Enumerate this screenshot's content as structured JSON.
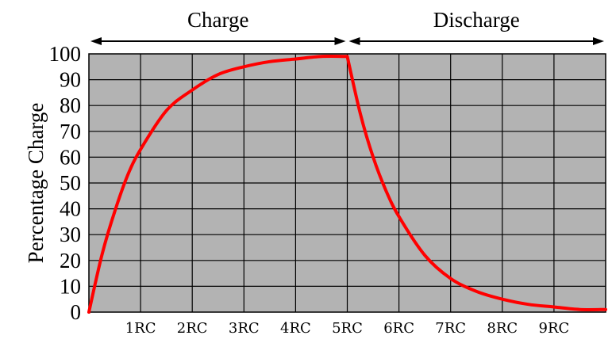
{
  "chart_data": {
    "type": "line",
    "title": "",
    "xlabel": "",
    "ylabel": "Percentage Charge",
    "xlim": [
      0,
      10
    ],
    "ylim": [
      0,
      100
    ],
    "x_ticks": [
      1,
      2,
      3,
      4,
      5,
      6,
      7,
      8,
      9
    ],
    "x_tick_labels": [
      "1RC",
      "2RC",
      "3RC",
      "4RC",
      "5RC",
      "6RC",
      "7RC",
      "8RC",
      "9RC"
    ],
    "y_ticks": [
      0,
      10,
      20,
      30,
      40,
      50,
      60,
      70,
      80,
      90,
      100
    ],
    "y_tick_labels": [
      "0",
      "10",
      "20",
      "30",
      "40",
      "50",
      "60",
      "70",
      "80",
      "90",
      "100"
    ],
    "grid": true,
    "phases": [
      {
        "label": "Charge",
        "x_start": 0,
        "x_end": 5
      },
      {
        "label": "Discharge",
        "x_start": 5,
        "x_end": 10
      }
    ],
    "series": [
      {
        "color": "#ff0000",
        "x": [
          0,
          0.25,
          0.5,
          0.75,
          1,
          1.5,
          2,
          2.5,
          3,
          3.5,
          4,
          4.5,
          5,
          5.25,
          5.5,
          5.75,
          6,
          6.5,
          7,
          7.5,
          8,
          8.5,
          9,
          9.5,
          10
        ],
        "y": [
          0,
          22,
          39,
          53,
          63,
          78,
          86,
          92,
          95,
          97,
          98,
          99,
          99,
          77,
          60,
          47,
          37,
          22,
          13,
          8,
          5,
          3,
          2,
          1,
          1
        ]
      }
    ]
  },
  "style": {
    "plot_bg": "#b3b3b3",
    "grid_color": "#000000",
    "line_color": "#ff0000"
  }
}
